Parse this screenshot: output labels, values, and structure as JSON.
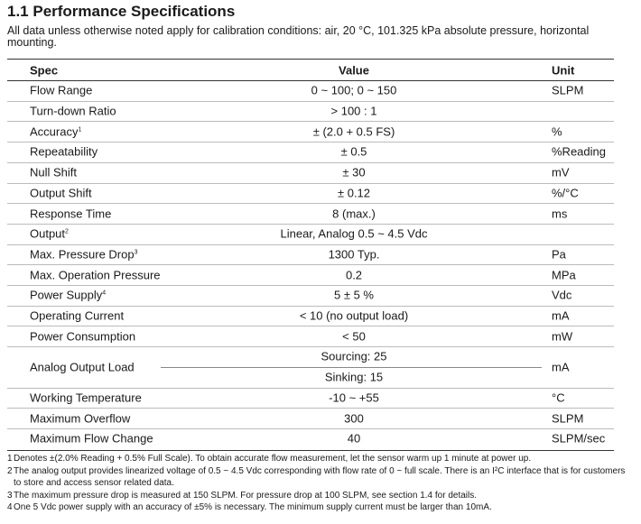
{
  "header": {
    "title": "1.1 Performance Specifications",
    "intro": "All data unless otherwise noted apply for calibration conditions: air, 20 °C, 101.325 kPa absolute pressure, horizontal mounting."
  },
  "table": {
    "columns": [
      "Spec",
      "Value",
      "Unit"
    ],
    "rows": [
      {
        "spec": "Flow Range",
        "value": "0 ~ 100; 0 ~ 150",
        "unit": "SLPM"
      },
      {
        "spec": "Turn-down Ratio",
        "value": "> 100 : 1"
      },
      {
        "spec": "Accuracy",
        "note": "1",
        "value": "± (2.0 + 0.5 FS)",
        "unit": "%"
      },
      {
        "spec": "Repeatability",
        "value": "± 0.5",
        "unit": "%Reading"
      },
      {
        "spec": "Null Shift",
        "value": "± 30",
        "unit": "mV"
      },
      {
        "spec": "Output Shift",
        "value": "± 0.12",
        "unit": "%/°C"
      },
      {
        "spec": "Response Time",
        "value": "8 (max.)",
        "unit": "ms"
      },
      {
        "spec": "Output",
        "note": "2",
        "value": "Linear, Analog 0.5 ~ 4.5 Vdc"
      },
      {
        "spec": "Max. Pressure Drop",
        "note": "3",
        "value": "1300 Typ.",
        "unit": "Pa"
      },
      {
        "spec": "Max. Operation Pressure",
        "value": "0.2",
        "unit": "MPa"
      },
      {
        "spec": "Power Supply",
        "note": "4",
        "value": "5 ± 5 %",
        "unit": "Vdc"
      },
      {
        "spec": "Operating Current",
        "value": "< 10 (no output load)",
        "unit": "mA"
      },
      {
        "spec": "Power Consumption",
        "value": "< 50",
        "unit": "mW"
      },
      {
        "spec": "Analog Output Load",
        "value": [
          "Sourcing: 25",
          "Sinking: 15"
        ],
        "unit": "mA"
      },
      {
        "spec": "Working Temperature",
        "value": "-10 ~ +55",
        "unit": "°C"
      },
      {
        "spec": "Maximum Overflow",
        "value": "300",
        "unit": "SLPM"
      },
      {
        "spec": "Maximum Flow Change",
        "value": "40",
        "unit": "SLPM/sec"
      }
    ]
  },
  "footnotes": [
    {
      "number": "1",
      "text": "Denotes ±(2.0% Reading + 0.5% Full Scale). To obtain accurate flow measurement, let the sensor warm up 1 minute at power up."
    },
    {
      "number": "2",
      "text": "The analog output provides linearized voltage of 0.5 ~ 4.5 Vdc corresponding with flow rate of 0 ~ full scale. There is an I²C interface that is for customers to store and access sensor related data."
    },
    {
      "number": "3",
      "text": "The maximum pressure drop is measured at 150 SLPM. For pressure drop at 100 SLPM, see section 1.4 for details."
    },
    {
      "number": "4",
      "text": "One 5 Vdc power supply with an accuracy of ±5% is necessary. The minimum supply current must be larger than 10mA."
    }
  ]
}
